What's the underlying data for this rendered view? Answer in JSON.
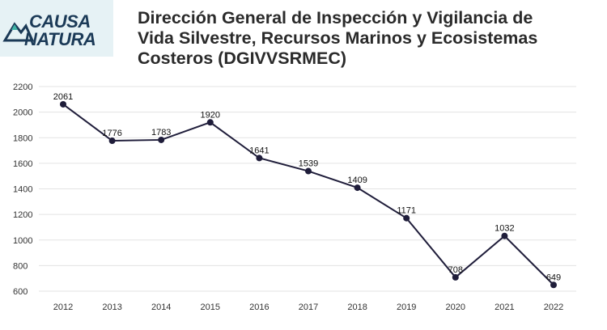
{
  "logo": {
    "line1": "CAUSA",
    "line2": "NATURA"
  },
  "header": {
    "title_lines": [
      "Dirección General de Inspección y Vigilancia de",
      "Vida Silvestre, Recursos Marinos y Ecosistemas",
      "Costeros (DGIVVSRMEC)"
    ]
  },
  "colors": {
    "line": "#1f1d3a",
    "marker": "#1f1d3a",
    "grid": "#e3e3e3",
    "logo_bg": "#e6f2f5",
    "logo_text": "#1b3a57",
    "logo_accent": "#3fb3a5"
  },
  "chart_data": {
    "type": "line",
    "title": "Dirección General de Inspección y Vigilancia de Vida Silvestre, Recursos Marinos y Ecosistemas Costeros (DGIVVSRMEC)",
    "xlabel": "",
    "ylabel": "",
    "categories": [
      "2012",
      "2013",
      "2014",
      "2015",
      "2016",
      "2017",
      "2018",
      "2019",
      "2020",
      "2021",
      "2022"
    ],
    "values": [
      2061,
      1776,
      1783,
      1920,
      1641,
      1539,
      1409,
      1171,
      708,
      1032,
      649
    ],
    "data_labels": [
      "2061",
      "1776",
      "1783",
      "1920",
      "1641",
      "1539",
      "1409",
      "1171",
      "708",
      "1032",
      "649"
    ],
    "yticks": [
      "2200",
      "2000",
      "1800",
      "1600",
      "1400",
      "1200",
      "1000",
      "800",
      "600"
    ],
    "ytick_values": [
      2200,
      2000,
      1800,
      1600,
      1400,
      1200,
      1000,
      800,
      600
    ],
    "ylim": [
      600,
      2200
    ],
    "grid": true
  }
}
